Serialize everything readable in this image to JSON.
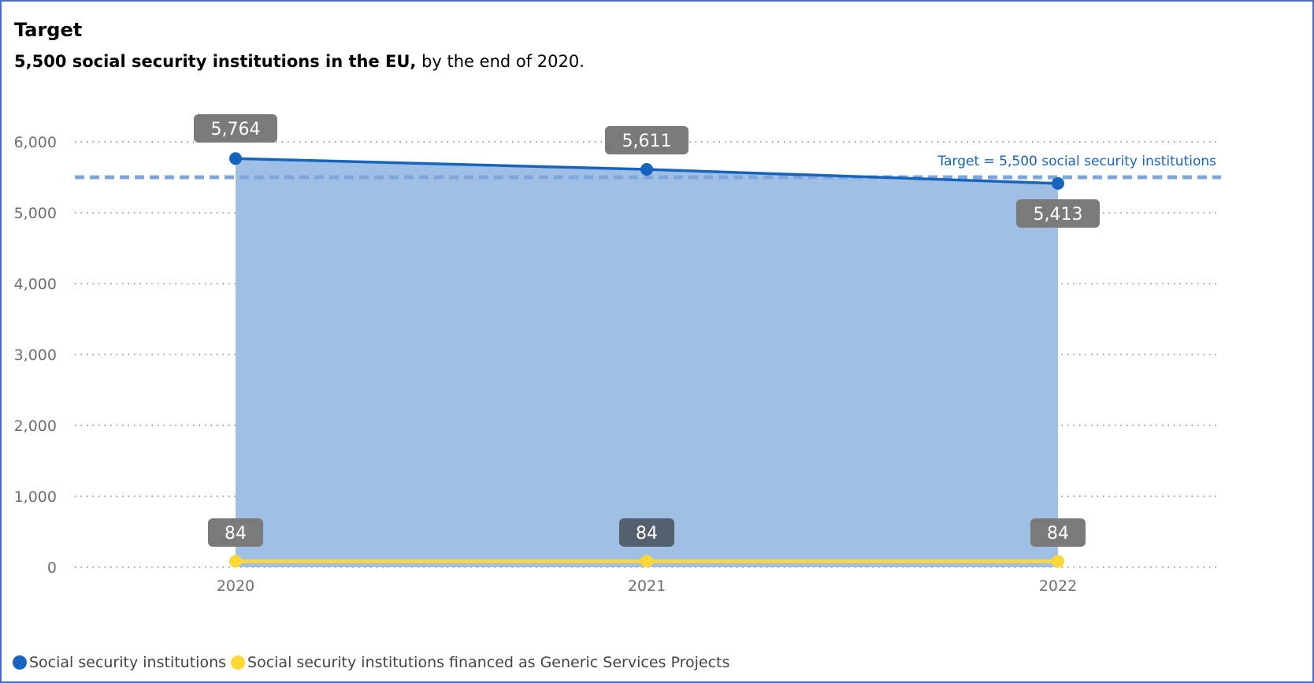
{
  "header": {
    "title": "Target",
    "subtitle_bold": "5,500 social security institutions in the EU,",
    "subtitle_rest": " by the end of 2020."
  },
  "colors": {
    "series1": "#1565c0",
    "series1_area": "#a0bfe4",
    "series2": "#fdd835",
    "target_line": "#7fa7dc",
    "label_bg": "#7a7a7a",
    "label_bg_dark": "#55606e",
    "grid": "#666666",
    "tick_text": "#6f6f6f"
  },
  "chart_data": {
    "type": "area",
    "x": [
      "2020",
      "2021",
      "2022"
    ],
    "ylim": [
      0,
      6000
    ],
    "yticks": [
      0,
      1000,
      2000,
      3000,
      4000,
      5000,
      6000
    ],
    "ytick_labels": [
      "0",
      "1,000",
      "2,000",
      "3,000",
      "4,000",
      "5,000",
      "6,000"
    ],
    "grid": true,
    "series": [
      {
        "name": "Social security institutions",
        "values": [
          5764,
          5611,
          5413
        ],
        "labels": [
          "5,764",
          "5,611",
          "5,413"
        ],
        "style": "area+line"
      },
      {
        "name": "Social security institutions financed as Generic Services Projects",
        "values": [
          84,
          84,
          84
        ],
        "labels": [
          "84",
          "84",
          "84"
        ],
        "style": "line"
      }
    ],
    "target": {
      "value": 5500,
      "label": "Target = 5,500 social security institutions"
    },
    "legend_position": "bottom-left"
  }
}
